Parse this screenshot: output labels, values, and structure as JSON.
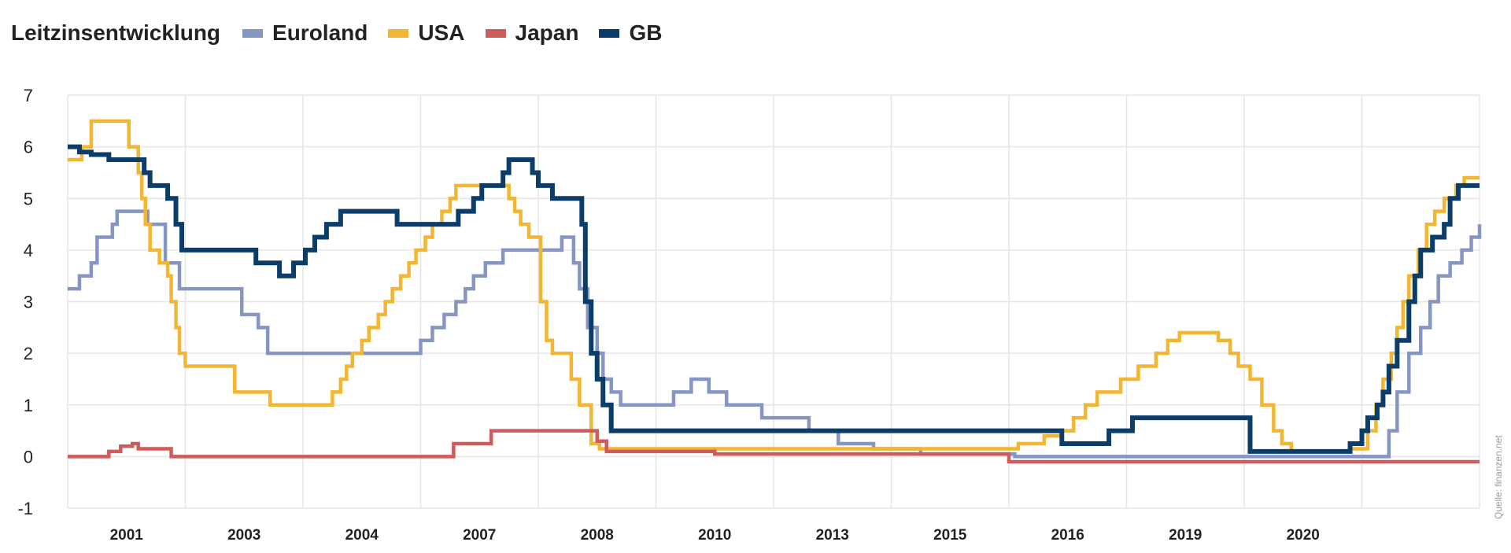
{
  "legend": {
    "title": "Leitzinsentwicklung",
    "items": [
      {
        "label": "Euroland",
        "color": "#8696c2"
      },
      {
        "label": "USA",
        "color": "#f2b632"
      },
      {
        "label": "Japan",
        "color": "#cd5c5c"
      },
      {
        "label": "GB",
        "color": "#0b3d6b"
      }
    ]
  },
  "source": "Quelle: finanzen.net",
  "chart_data": {
    "type": "line",
    "step": true,
    "title": "Leitzinsentwicklung",
    "xlabel": "",
    "ylabel": "",
    "ylim": [
      -1,
      7
    ],
    "yticks": [
      -1,
      0,
      1,
      2,
      3,
      4,
      5,
      6,
      7
    ],
    "x_tick_labels": [
      "2001",
      "2003",
      "2004",
      "2007",
      "2008",
      "2010",
      "2013",
      "2015",
      "2016",
      "2019",
      "2020"
    ],
    "x_tick_positions": [
      0.5,
      1.5,
      2.5,
      3.5,
      4.5,
      5.5,
      6.5,
      7.5,
      8.5,
      9.5,
      10.5
    ],
    "xlim": [
      0,
      12
    ],
    "grid": true,
    "legend_position": "top-left",
    "series": [
      {
        "name": "Euroland",
        "color": "#8696c2",
        "points": [
          [
            0,
            3.25
          ],
          [
            0.1,
            3.5
          ],
          [
            0.2,
            3.75
          ],
          [
            0.25,
            4.25
          ],
          [
            0.38,
            4.5
          ],
          [
            0.42,
            4.75
          ],
          [
            0.68,
            4.5
          ],
          [
            0.83,
            3.75
          ],
          [
            0.95,
            3.25
          ],
          [
            1.48,
            2.75
          ],
          [
            1.62,
            2.5
          ],
          [
            1.7,
            2.0
          ],
          [
            3.0,
            2.25
          ],
          [
            3.1,
            2.5
          ],
          [
            3.2,
            2.75
          ],
          [
            3.3,
            3.0
          ],
          [
            3.38,
            3.25
          ],
          [
            3.45,
            3.5
          ],
          [
            3.55,
            3.75
          ],
          [
            3.7,
            4.0
          ],
          [
            4.2,
            4.25
          ],
          [
            4.3,
            3.75
          ],
          [
            4.35,
            3.25
          ],
          [
            4.42,
            2.5
          ],
          [
            4.5,
            2.0
          ],
          [
            4.55,
            1.5
          ],
          [
            4.62,
            1.25
          ],
          [
            4.7,
            1.0
          ],
          [
            5.15,
            1.25
          ],
          [
            5.3,
            1.5
          ],
          [
            5.45,
            1.25
          ],
          [
            5.6,
            1.0
          ],
          [
            5.9,
            0.75
          ],
          [
            6.3,
            0.5
          ],
          [
            6.55,
            0.25
          ],
          [
            6.85,
            0.15
          ],
          [
            7.25,
            0.05
          ],
          [
            8.05,
            0.0
          ],
          [
            11.23,
            0.5
          ],
          [
            11.3,
            1.25
          ],
          [
            11.4,
            2.0
          ],
          [
            11.5,
            2.5
          ],
          [
            11.58,
            3.0
          ],
          [
            11.65,
            3.5
          ],
          [
            11.75,
            3.75
          ],
          [
            11.85,
            4.0
          ],
          [
            11.93,
            4.25
          ],
          [
            12,
            4.5
          ]
        ]
      },
      {
        "name": "USA",
        "color": "#f2b632",
        "points": [
          [
            0,
            5.75
          ],
          [
            0.12,
            6.0
          ],
          [
            0.2,
            6.5
          ],
          [
            0.52,
            6.0
          ],
          [
            0.6,
            5.5
          ],
          [
            0.63,
            5.0
          ],
          [
            0.66,
            4.5
          ],
          [
            0.7,
            4.0
          ],
          [
            0.78,
            3.75
          ],
          [
            0.85,
            3.5
          ],
          [
            0.88,
            3.0
          ],
          [
            0.92,
            2.5
          ],
          [
            0.95,
            2.0
          ],
          [
            1.0,
            1.75
          ],
          [
            1.42,
            1.25
          ],
          [
            1.72,
            1.0
          ],
          [
            2.25,
            1.25
          ],
          [
            2.32,
            1.5
          ],
          [
            2.37,
            1.75
          ],
          [
            2.42,
            2.0
          ],
          [
            2.5,
            2.25
          ],
          [
            2.56,
            2.5
          ],
          [
            2.64,
            2.75
          ],
          [
            2.7,
            3.0
          ],
          [
            2.76,
            3.25
          ],
          [
            2.83,
            3.5
          ],
          [
            2.9,
            3.75
          ],
          [
            2.96,
            4.0
          ],
          [
            3.04,
            4.25
          ],
          [
            3.1,
            4.5
          ],
          [
            3.18,
            4.75
          ],
          [
            3.25,
            5.0
          ],
          [
            3.3,
            5.25
          ],
          [
            3.75,
            5.0
          ],
          [
            3.8,
            4.75
          ],
          [
            3.85,
            4.5
          ],
          [
            3.92,
            4.25
          ],
          [
            4.02,
            3.0
          ],
          [
            4.07,
            2.25
          ],
          [
            4.12,
            2.0
          ],
          [
            4.28,
            1.5
          ],
          [
            4.35,
            1.0
          ],
          [
            4.45,
            0.25
          ],
          [
            4.52,
            0.15
          ],
          [
            8.08,
            0.25
          ],
          [
            8.3,
            0.4
          ],
          [
            8.45,
            0.5
          ],
          [
            8.55,
            0.75
          ],
          [
            8.65,
            1.0
          ],
          [
            8.75,
            1.25
          ],
          [
            8.95,
            1.5
          ],
          [
            9.1,
            1.75
          ],
          [
            9.25,
            2.0
          ],
          [
            9.35,
            2.25
          ],
          [
            9.45,
            2.4
          ],
          [
            9.78,
            2.25
          ],
          [
            9.88,
            2.0
          ],
          [
            9.95,
            1.75
          ],
          [
            10.05,
            1.5
          ],
          [
            10.15,
            1.0
          ],
          [
            10.25,
            0.5
          ],
          [
            10.32,
            0.25
          ],
          [
            10.4,
            0.1
          ],
          [
            10.9,
            0.15
          ],
          [
            11.05,
            0.5
          ],
          [
            11.12,
            1.0
          ],
          [
            11.18,
            1.5
          ],
          [
            11.25,
            2.0
          ],
          [
            11.3,
            2.5
          ],
          [
            11.35,
            3.0
          ],
          [
            11.4,
            3.5
          ],
          [
            11.48,
            4.0
          ],
          [
            11.55,
            4.5
          ],
          [
            11.62,
            4.75
          ],
          [
            11.7,
            5.0
          ],
          [
            11.8,
            5.25
          ],
          [
            11.87,
            5.4
          ],
          [
            12,
            5.4
          ]
        ]
      },
      {
        "name": "Japan",
        "color": "#cd5c5c",
        "points": [
          [
            0,
            0.0
          ],
          [
            0.35,
            0.1
          ],
          [
            0.45,
            0.2
          ],
          [
            0.55,
            0.25
          ],
          [
            0.6,
            0.15
          ],
          [
            0.88,
            0.0
          ],
          [
            3.28,
            0.25
          ],
          [
            3.6,
            0.5
          ],
          [
            4.5,
            0.3
          ],
          [
            4.58,
            0.1
          ],
          [
            5.5,
            0.05
          ],
          [
            8.0,
            -0.1
          ],
          [
            12,
            -0.1
          ]
        ]
      },
      {
        "name": "GB",
        "color": "#0b3d6b",
        "points": [
          [
            0,
            6.0
          ],
          [
            0.1,
            5.9
          ],
          [
            0.2,
            5.85
          ],
          [
            0.35,
            5.75
          ],
          [
            0.65,
            5.5
          ],
          [
            0.7,
            5.25
          ],
          [
            0.85,
            5.0
          ],
          [
            0.92,
            4.5
          ],
          [
            0.97,
            4.0
          ],
          [
            1.6,
            3.75
          ],
          [
            1.8,
            3.5
          ],
          [
            1.92,
            3.75
          ],
          [
            2.02,
            4.0
          ],
          [
            2.1,
            4.25
          ],
          [
            2.2,
            4.5
          ],
          [
            2.32,
            4.75
          ],
          [
            2.8,
            4.5
          ],
          [
            3.32,
            4.75
          ],
          [
            3.45,
            5.0
          ],
          [
            3.52,
            5.25
          ],
          [
            3.7,
            5.5
          ],
          [
            3.75,
            5.75
          ],
          [
            3.95,
            5.5
          ],
          [
            4.0,
            5.25
          ],
          [
            4.12,
            5.0
          ],
          [
            4.37,
            4.5
          ],
          [
            4.4,
            3.0
          ],
          [
            4.45,
            2.0
          ],
          [
            4.5,
            1.5
          ],
          [
            4.55,
            1.0
          ],
          [
            4.62,
            0.5
          ],
          [
            8.45,
            0.25
          ],
          [
            8.85,
            0.5
          ],
          [
            9.05,
            0.75
          ],
          [
            9.5,
            0.75
          ],
          [
            9.6,
            0.75
          ],
          [
            10.05,
            0.1
          ],
          [
            10.2,
            0.1
          ],
          [
            10.9,
            0.25
          ],
          [
            11.0,
            0.5
          ],
          [
            11.05,
            0.75
          ],
          [
            11.13,
            1.0
          ],
          [
            11.18,
            1.25
          ],
          [
            11.23,
            1.75
          ],
          [
            11.3,
            2.25
          ],
          [
            11.4,
            3.0
          ],
          [
            11.45,
            3.5
          ],
          [
            11.5,
            4.0
          ],
          [
            11.6,
            4.25
          ],
          [
            11.7,
            4.5
          ],
          [
            11.75,
            5.0
          ],
          [
            11.82,
            5.25
          ],
          [
            12,
            5.25
          ]
        ]
      }
    ]
  }
}
